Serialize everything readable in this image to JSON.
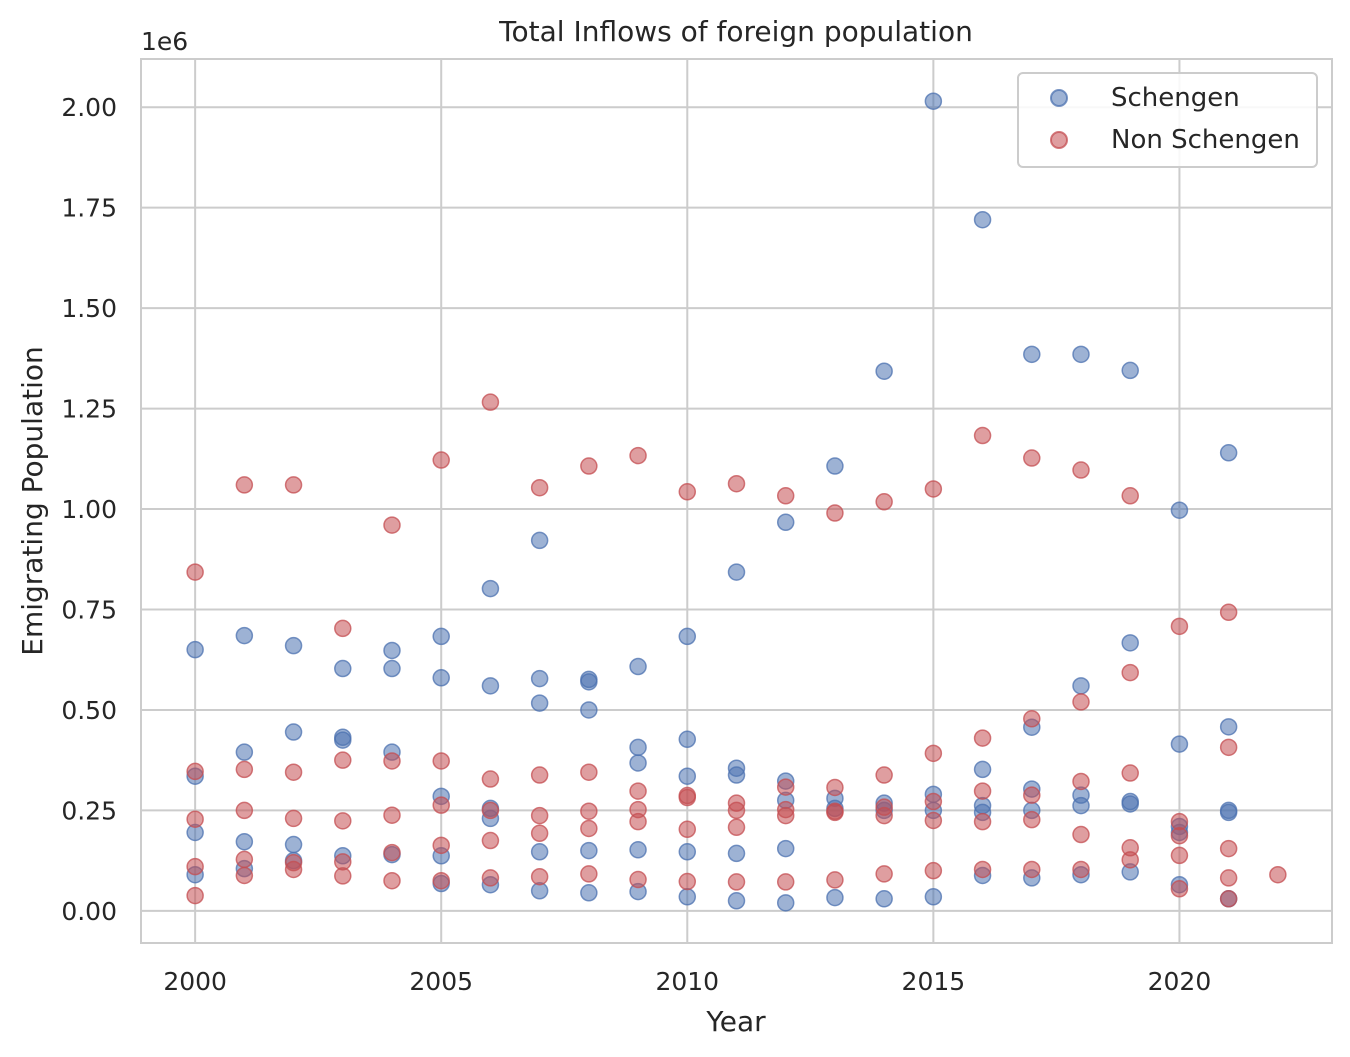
{
  "chart_data": {
    "type": "scatter",
    "title": "Total Inflows of foreign population",
    "xlabel": "Year",
    "ylabel": "Emigrating Population",
    "y_scale_label": "1e6",
    "xlim": [
      1998.9,
      2023.1
    ],
    "ylim": [
      -80000,
      2120000
    ],
    "x_ticks": [
      2000,
      2005,
      2010,
      2015,
      2020
    ],
    "x_tick_labels": [
      "2000",
      "2005",
      "2010",
      "2015",
      "2020"
    ],
    "y_ticks": [
      0,
      250000,
      500000,
      750000,
      1000000,
      1250000,
      1500000,
      1750000,
      2000000
    ],
    "y_tick_labels": [
      "0.00",
      "0.25",
      "0.50",
      "0.75",
      "1.00",
      "1.25",
      "1.50",
      "1.75",
      "2.00"
    ],
    "grid": true,
    "legend_position": "top-right",
    "series": [
      {
        "name": "Schengen",
        "color": "#4c72b0",
        "points": [
          [
            2000,
            650000
          ],
          [
            2000,
            335000
          ],
          [
            2000,
            195000
          ],
          [
            2000,
            90000
          ],
          [
            2001,
            685000
          ],
          [
            2001,
            395000
          ],
          [
            2001,
            172000
          ],
          [
            2001,
            105000
          ],
          [
            2002,
            660000
          ],
          [
            2002,
            445000
          ],
          [
            2002,
            165000
          ],
          [
            2002,
            125000
          ],
          [
            2003,
            603000
          ],
          [
            2003,
            432000
          ],
          [
            2003,
            425000
          ],
          [
            2003,
            137000
          ],
          [
            2004,
            648000
          ],
          [
            2004,
            603000
          ],
          [
            2004,
            395000
          ],
          [
            2004,
            140000
          ],
          [
            2005,
            683000
          ],
          [
            2005,
            580000
          ],
          [
            2005,
            285000
          ],
          [
            2005,
            137000
          ],
          [
            2005,
            68000
          ],
          [
            2006,
            802000
          ],
          [
            2006,
            560000
          ],
          [
            2006,
            255000
          ],
          [
            2006,
            230000
          ],
          [
            2006,
            65000
          ],
          [
            2007,
            922000
          ],
          [
            2007,
            578000
          ],
          [
            2007,
            517000
          ],
          [
            2007,
            147000
          ],
          [
            2007,
            50000
          ],
          [
            2008,
            576000
          ],
          [
            2008,
            570000
          ],
          [
            2008,
            500000
          ],
          [
            2008,
            150000
          ],
          [
            2008,
            45000
          ],
          [
            2009,
            608000
          ],
          [
            2009,
            407000
          ],
          [
            2009,
            368000
          ],
          [
            2009,
            152000
          ],
          [
            2009,
            48000
          ],
          [
            2010,
            683000
          ],
          [
            2010,
            427000
          ],
          [
            2010,
            335000
          ],
          [
            2010,
            147000
          ],
          [
            2010,
            35000
          ],
          [
            2011,
            843000
          ],
          [
            2011,
            355000
          ],
          [
            2011,
            338000
          ],
          [
            2011,
            143000
          ],
          [
            2011,
            25000
          ],
          [
            2012,
            967000
          ],
          [
            2012,
            323000
          ],
          [
            2012,
            275000
          ],
          [
            2012,
            155000
          ],
          [
            2012,
            20000
          ],
          [
            2013,
            1107000
          ],
          [
            2013,
            280000
          ],
          [
            2013,
            255000
          ],
          [
            2013,
            33000
          ],
          [
            2014,
            1343000
          ],
          [
            2014,
            268000
          ],
          [
            2014,
            250000
          ],
          [
            2014,
            30000
          ],
          [
            2015,
            2015000
          ],
          [
            2015,
            290000
          ],
          [
            2015,
            250000
          ],
          [
            2015,
            35000
          ],
          [
            2016,
            1720000
          ],
          [
            2016,
            352000
          ],
          [
            2016,
            262000
          ],
          [
            2016,
            245000
          ],
          [
            2016,
            88000
          ],
          [
            2017,
            1385000
          ],
          [
            2017,
            457000
          ],
          [
            2017,
            303000
          ],
          [
            2017,
            250000
          ],
          [
            2017,
            82000
          ],
          [
            2018,
            1385000
          ],
          [
            2018,
            560000
          ],
          [
            2018,
            288000
          ],
          [
            2018,
            262000
          ],
          [
            2018,
            90000
          ],
          [
            2019,
            1345000
          ],
          [
            2019,
            667000
          ],
          [
            2019,
            272000
          ],
          [
            2019,
            266000
          ],
          [
            2019,
            97000
          ],
          [
            2020,
            997000
          ],
          [
            2020,
            415000
          ],
          [
            2020,
            210000
          ],
          [
            2020,
            195000
          ],
          [
            2020,
            65000
          ],
          [
            2021,
            1140000
          ],
          [
            2021,
            458000
          ],
          [
            2021,
            250000
          ],
          [
            2021,
            245000
          ],
          [
            2021,
            30000
          ]
        ]
      },
      {
        "name": "Non Schengen",
        "color": "#c44e52",
        "points": [
          [
            2000,
            843000
          ],
          [
            2000,
            347000
          ],
          [
            2000,
            228000
          ],
          [
            2000,
            110000
          ],
          [
            2000,
            38000
          ],
          [
            2001,
            1060000
          ],
          [
            2001,
            352000
          ],
          [
            2001,
            250000
          ],
          [
            2001,
            128000
          ],
          [
            2001,
            88000
          ],
          [
            2002,
            1060000
          ],
          [
            2002,
            345000
          ],
          [
            2002,
            230000
          ],
          [
            2002,
            120000
          ],
          [
            2002,
            103000
          ],
          [
            2003,
            703000
          ],
          [
            2003,
            375000
          ],
          [
            2003,
            224000
          ],
          [
            2003,
            122000
          ],
          [
            2003,
            87000
          ],
          [
            2004,
            960000
          ],
          [
            2004,
            373000
          ],
          [
            2004,
            238000
          ],
          [
            2004,
            145000
          ],
          [
            2004,
            75000
          ],
          [
            2005,
            1122000
          ],
          [
            2005,
            373000
          ],
          [
            2005,
            263000
          ],
          [
            2005,
            163000
          ],
          [
            2005,
            75000
          ],
          [
            2006,
            1266000
          ],
          [
            2006,
            328000
          ],
          [
            2006,
            250000
          ],
          [
            2006,
            175000
          ],
          [
            2006,
            82000
          ],
          [
            2007,
            1053000
          ],
          [
            2007,
            338000
          ],
          [
            2007,
            237000
          ],
          [
            2007,
            193000
          ],
          [
            2007,
            85000
          ],
          [
            2008,
            1107000
          ],
          [
            2008,
            345000
          ],
          [
            2008,
            248000
          ],
          [
            2008,
            205000
          ],
          [
            2008,
            92000
          ],
          [
            2009,
            1133000
          ],
          [
            2009,
            298000
          ],
          [
            2009,
            252000
          ],
          [
            2009,
            222000
          ],
          [
            2009,
            78000
          ],
          [
            2010,
            1043000
          ],
          [
            2010,
            287000
          ],
          [
            2010,
            282000
          ],
          [
            2010,
            203000
          ],
          [
            2010,
            73000
          ],
          [
            2011,
            1063000
          ],
          [
            2011,
            268000
          ],
          [
            2011,
            250000
          ],
          [
            2011,
            208000
          ],
          [
            2011,
            72000
          ],
          [
            2012,
            1033000
          ],
          [
            2012,
            308000
          ],
          [
            2012,
            252000
          ],
          [
            2012,
            237000
          ],
          [
            2012,
            72000
          ],
          [
            2013,
            990000
          ],
          [
            2013,
            307000
          ],
          [
            2013,
            248000
          ],
          [
            2013,
            245000
          ],
          [
            2013,
            77000
          ],
          [
            2014,
            1018000
          ],
          [
            2014,
            338000
          ],
          [
            2014,
            258000
          ],
          [
            2014,
            237000
          ],
          [
            2014,
            92000
          ],
          [
            2015,
            1050000
          ],
          [
            2015,
            392000
          ],
          [
            2015,
            272000
          ],
          [
            2015,
            225000
          ],
          [
            2015,
            100000
          ],
          [
            2016,
            1183000
          ],
          [
            2016,
            430000
          ],
          [
            2016,
            298000
          ],
          [
            2016,
            222000
          ],
          [
            2016,
            103000
          ],
          [
            2017,
            1127000
          ],
          [
            2017,
            478000
          ],
          [
            2017,
            288000
          ],
          [
            2017,
            227000
          ],
          [
            2017,
            103000
          ],
          [
            2018,
            1097000
          ],
          [
            2018,
            520000
          ],
          [
            2018,
            322000
          ],
          [
            2018,
            190000
          ],
          [
            2018,
            103000
          ],
          [
            2019,
            1033000
          ],
          [
            2019,
            593000
          ],
          [
            2019,
            343000
          ],
          [
            2019,
            157000
          ],
          [
            2019,
            127000
          ],
          [
            2020,
            708000
          ],
          [
            2020,
            222000
          ],
          [
            2020,
            187000
          ],
          [
            2020,
            138000
          ],
          [
            2020,
            55000
          ],
          [
            2021,
            743000
          ],
          [
            2021,
            407000
          ],
          [
            2021,
            155000
          ],
          [
            2021,
            82000
          ],
          [
            2021,
            30000
          ],
          [
            2022,
            90000
          ]
        ]
      }
    ]
  }
}
